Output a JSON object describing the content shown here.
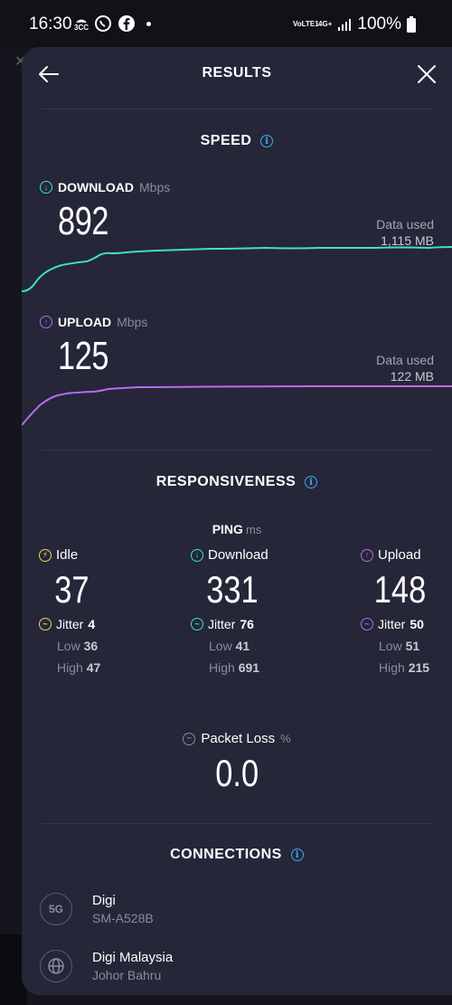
{
  "status_bar": {
    "time": "16:30",
    "left_tag": "3CC",
    "net_tag": "VoLTE1",
    "net_type": "4G+",
    "battery": "100%"
  },
  "header": {
    "title": "RESULTS"
  },
  "speed": {
    "title": "SPEED",
    "download": {
      "label": "DOWNLOAD",
      "unit": "Mbps",
      "value": "892",
      "data_used_label": "Data used",
      "data_used_value": "1,115 MB",
      "color": "#3ee0c8"
    },
    "upload": {
      "label": "UPLOAD",
      "unit": "Mbps",
      "value": "125",
      "data_used_label": "Data used",
      "data_used_value": "122 MB",
      "color": "#b76bf0"
    }
  },
  "responsiveness": {
    "title": "RESPONSIVENESS",
    "ping_label": "PING",
    "ping_unit": "ms",
    "columns": [
      {
        "label": "Idle",
        "value": "37",
        "jitter_label": "Jitter",
        "jitter": "4",
        "low_label": "Low",
        "low": "36",
        "high_label": "High",
        "high": "47",
        "color": "#f2d35b"
      },
      {
        "label": "Download",
        "value": "331",
        "jitter_label": "Jitter",
        "jitter": "76",
        "low_label": "Low",
        "low": "41",
        "high_label": "High",
        "high": "691",
        "color": "#3ee0c8"
      },
      {
        "label": "Upload",
        "value": "148",
        "jitter_label": "Jitter",
        "jitter": "50",
        "low_label": "Low",
        "low": "51",
        "high_label": "High",
        "high": "215",
        "color": "#b76bf0"
      }
    ]
  },
  "packet_loss": {
    "label": "Packet Loss",
    "unit": "%",
    "value": "0.0"
  },
  "connections": {
    "title": "CONNECTIONS",
    "items": [
      {
        "icon": "5G",
        "name": "Digi",
        "detail": "SM-A528B"
      },
      {
        "icon": "globe-icon",
        "name": "Digi Malaysia",
        "detail": "Johor Bahru"
      }
    ]
  }
}
